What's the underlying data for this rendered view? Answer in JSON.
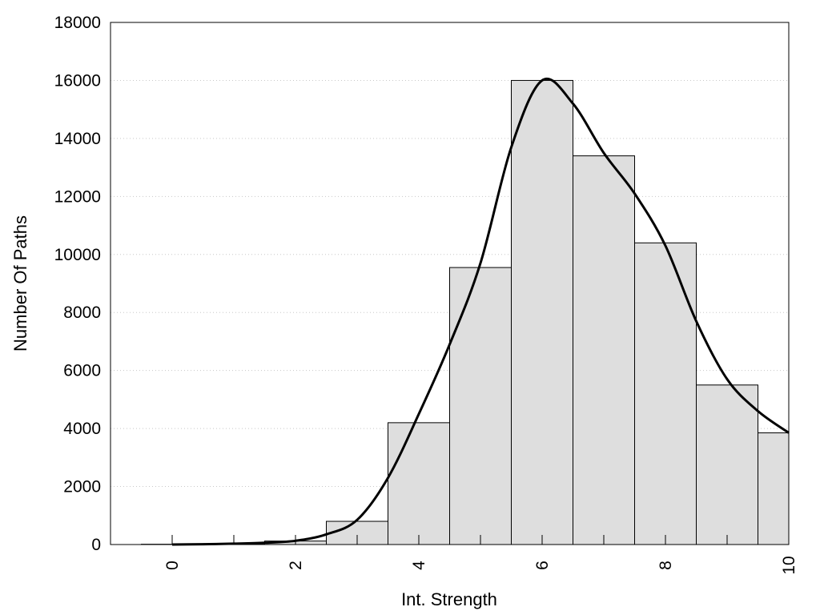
{
  "chart_data": {
    "type": "bar",
    "title": "",
    "xlabel": "Int. Strength",
    "ylabel": "Number Of Paths",
    "xlim": [
      -1,
      10
    ],
    "ylim": [
      0,
      18000
    ],
    "x_ticks": [
      0,
      2,
      4,
      6,
      8,
      10
    ],
    "y_ticks": [
      0,
      2000,
      4000,
      6000,
      8000,
      10000,
      12000,
      14000,
      16000,
      18000
    ],
    "grid": "horizontal dotted",
    "legend": "none",
    "bar_width": 1,
    "x": [
      0,
      1,
      2,
      3,
      4,
      5,
      6,
      7,
      8,
      9,
      10
    ],
    "values": [
      10,
      30,
      120,
      800,
      4200,
      9550,
      16000,
      13400,
      10400,
      5500,
      3850
    ],
    "curve": {
      "x": [
        0,
        0.5,
        1,
        1.5,
        2,
        2.5,
        3,
        3.5,
        4,
        4.5,
        5,
        5.5,
        6,
        6.5,
        7,
        7.5,
        8,
        8.5,
        9,
        9.5,
        10
      ],
      "y": [
        0,
        10,
        30,
        60,
        130,
        350,
        850,
        2300,
        4500,
        6900,
        9700,
        13700,
        16000,
        15200,
        13500,
        12100,
        10300,
        7700,
        5700,
        4600,
        3850
      ]
    },
    "colors": {
      "bar_fill": "#dedede",
      "bar_stroke": "#000000",
      "curve": "#000000",
      "grid": "#c8c8c8"
    }
  }
}
